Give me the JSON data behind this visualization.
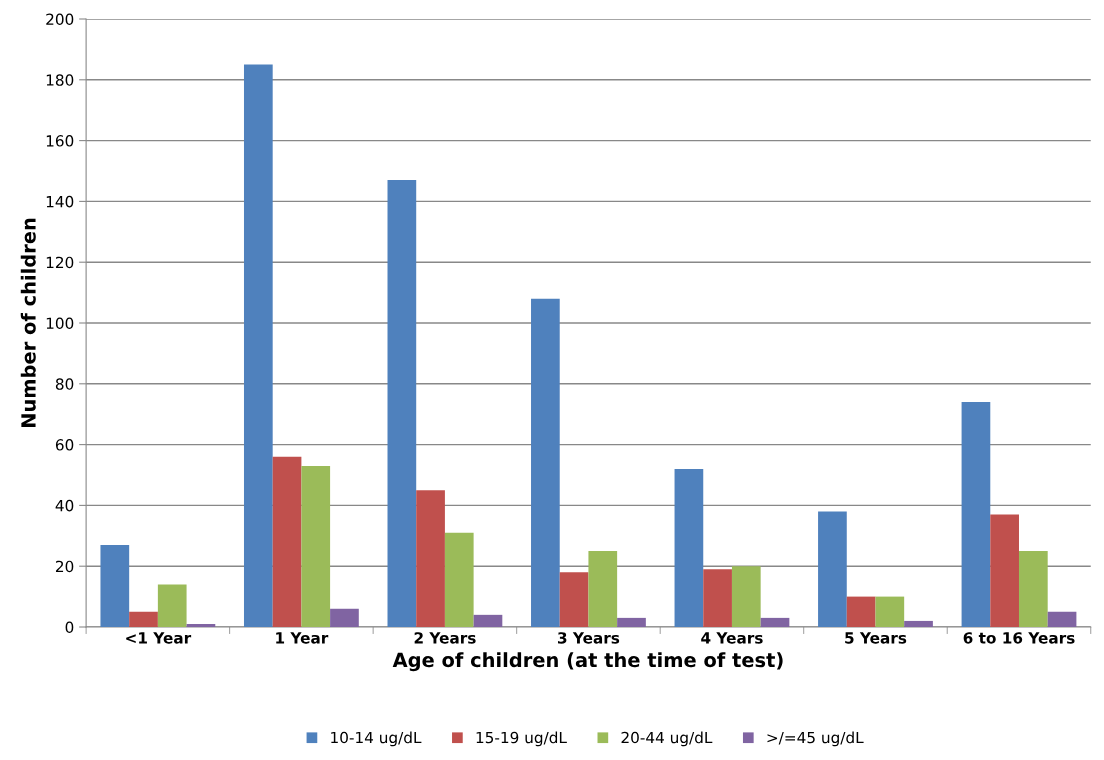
{
  "chart_data": {
    "type": "bar",
    "xlabel": "Age of children (at the time of test)",
    "ylabel": "Number of children",
    "categories": [
      "<1 Year",
      "1 Year",
      "2 Years",
      "3 Years",
      "4 Years",
      "5 Years",
      "6 to 16 Years"
    ],
    "series": [
      {
        "name": "10-14 ug/dL",
        "color": "#4f81bd",
        "values": [
          27,
          185,
          147,
          108,
          52,
          38,
          74
        ]
      },
      {
        "name": "15-19 ug/dL",
        "color": "#c0504d",
        "values": [
          5,
          56,
          45,
          18,
          19,
          10,
          37
        ]
      },
      {
        "name": "20-44 ug/dL",
        "color": "#9bbb59",
        "values": [
          14,
          53,
          31,
          25,
          20,
          10,
          25
        ]
      },
      {
        "name": ">/=45 ug/dL",
        "color": "#8064a2",
        "values": [
          1,
          6,
          4,
          3,
          3,
          2,
          5
        ]
      }
    ],
    "ylim": [
      0,
      200
    ],
    "yticks": [
      0,
      20,
      40,
      60,
      80,
      100,
      120,
      140,
      160,
      180,
      200
    ],
    "grid": "y",
    "legend": "bottom"
  }
}
